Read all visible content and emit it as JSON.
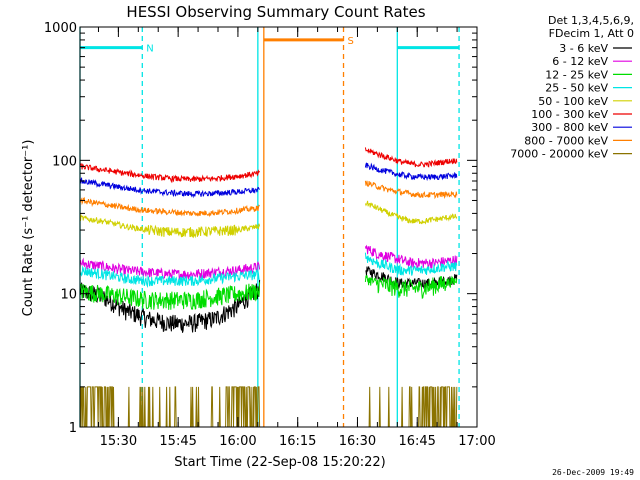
{
  "chart_data": {
    "type": "line",
    "title": "HESSI Observing Summary Count Rates",
    "xlabel": "Start Time (22-Sep-08 15:20:22)",
    "ylabel": "Count Rate (s⁻¹ detector⁻¹)",
    "y_scale": "log",
    "ylim": [
      1,
      1000
    ],
    "xlim": [
      "15:20:22",
      "17:00:00"
    ],
    "x_ticks": [
      "15:30",
      "15:45",
      "16:00",
      "16:15",
      "16:30",
      "16:45",
      "17:00"
    ],
    "y_ticks": [
      {
        "value": 1,
        "label": "1"
      },
      {
        "value": 10,
        "label": "10"
      },
      {
        "value": 100,
        "label": "100"
      },
      {
        "value": 1000,
        "label": "1000"
      }
    ],
    "legend_header": [
      "Det 1,3,4,5,6,9,",
      "FDecim 1, Att 0"
    ],
    "legend_placement": "top-right, outside plot",
    "segments": [
      [
        "15:20:22",
        "16:05:30"
      ],
      [
        "16:32:00",
        "16:55:00"
      ]
    ],
    "series": [
      {
        "name": "3 - 6 keV",
        "color": "#000000",
        "values": [
          [
            10.5,
            9.5,
            7.5,
            6.5,
            6.0,
            6.0,
            6.5,
            8.0,
            11.0
          ],
          [
            15,
            14,
            13,
            12,
            12,
            12,
            12,
            12.5,
            13
          ]
        ]
      },
      {
        "name": "6 - 12 keV",
        "color": "#e000e0",
        "values": [
          [
            17,
            16,
            15,
            14.5,
            14,
            14,
            14.5,
            15,
            16
          ],
          [
            22,
            20,
            19,
            18,
            17,
            17,
            17,
            17.5,
            18
          ]
        ]
      },
      {
        "name": "12 - 25 keV",
        "color": "#00dd00",
        "values": [
          [
            10.5,
            10,
            9.5,
            9,
            9,
            9,
            9.5,
            10,
            10.5
          ],
          [
            13,
            12,
            11.5,
            11,
            11,
            11,
            11.5,
            12,
            12.5
          ]
        ]
      },
      {
        "name": "25 - 50 keV",
        "color": "#00e5e5",
        "values": [
          [
            15,
            14,
            13,
            12.5,
            12.5,
            12.5,
            13,
            13.5,
            14
          ],
          [
            19,
            17,
            16,
            15,
            15,
            15,
            15.5,
            16,
            16
          ]
        ]
      },
      {
        "name": "50 - 100 keV",
        "color": "#d0d000",
        "values": [
          [
            37,
            35,
            32,
            30,
            29,
            29,
            29.5,
            30,
            32
          ],
          [
            48,
            44,
            40,
            37,
            35,
            35,
            36,
            37,
            38
          ]
        ]
      },
      {
        "name": "100 - 300 keV",
        "color": "#ee0000",
        "values": [
          [
            90,
            85,
            80,
            76,
            73,
            72,
            73,
            76,
            80
          ],
          [
            120,
            112,
            105,
            98,
            94,
            93,
            95,
            98,
            100
          ]
        ]
      },
      {
        "name": "300 - 800 keV",
        "color": "#0000dd",
        "values": [
          [
            70,
            66,
            62,
            59,
            57,
            56,
            56.5,
            58,
            60
          ],
          [
            92,
            86,
            82,
            78,
            76,
            75,
            75,
            76,
            77
          ]
        ]
      },
      {
        "name": "800 - 7000 keV",
        "color": "#ff7f00",
        "values": [
          [
            50,
            47,
            44,
            42,
            41,
            40,
            40.5,
            42,
            44
          ],
          [
            68,
            64,
            60,
            58,
            56,
            55,
            55,
            55.5,
            56
          ]
        ]
      },
      {
        "name": "7000 - 20000 keV",
        "color": "#8b7300",
        "values": [
          [
            2,
            2,
            1,
            1,
            1,
            1,
            1,
            2,
            2
          ],
          [
            1,
            1,
            1,
            1,
            1,
            2,
            2,
            2,
            2
          ]
        ]
      }
    ],
    "flags": [
      {
        "label": "N",
        "color": "#00e5e5",
        "level": 700,
        "start": "15:20:22",
        "end": "15:36:00"
      },
      {
        "label": "S",
        "color": "#ff7f00",
        "level": 800,
        "start": "16:06:30",
        "end": "16:26:30"
      },
      {
        "label": "",
        "color": "#00e5e5",
        "level": 700,
        "start": "16:40:00",
        "end": "16:55:30"
      }
    ],
    "vlines": [
      {
        "time": "15:20:22",
        "color": "#00e5e5",
        "style": "solid"
      },
      {
        "time": "15:36:00",
        "color": "#00e5e5",
        "style": "dashed"
      },
      {
        "time": "16:05:00",
        "color": "#00e5e5",
        "style": "solid"
      },
      {
        "time": "16:06:30",
        "color": "#ff7f00",
        "style": "solid"
      },
      {
        "time": "16:26:30",
        "color": "#ff7f00",
        "style": "dashed"
      },
      {
        "time": "16:40:00",
        "color": "#00e5e5",
        "style": "solid"
      },
      {
        "time": "16:55:30",
        "color": "#00e5e5",
        "style": "dashed"
      }
    ],
    "footer": "26-Dec-2009 19:49"
  }
}
